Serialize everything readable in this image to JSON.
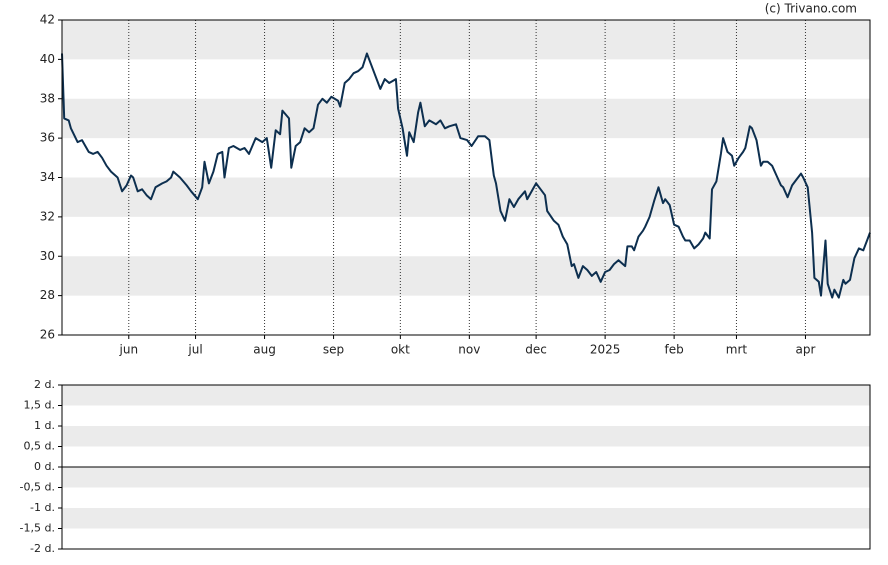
{
  "credit": "(c) Trivano.com",
  "chart_data": [
    {
      "type": "line",
      "xlim": [
        0,
        363
      ],
      "xticks": [
        {
          "value": 30,
          "label": "jun"
        },
        {
          "value": 60,
          "label": "jul"
        },
        {
          "value": 91,
          "label": "aug"
        },
        {
          "value": 122,
          "label": "sep"
        },
        {
          "value": 152,
          "label": "okt"
        },
        {
          "value": 183,
          "label": "nov"
        },
        {
          "value": 213,
          "label": "dec"
        },
        {
          "value": 244,
          "label": "2025"
        },
        {
          "value": 275,
          "label": "feb"
        },
        {
          "value": 303,
          "label": "mrt"
        },
        {
          "value": 334,
          "label": "apr"
        }
      ],
      "ylim": [
        26,
        42
      ],
      "yticks": [
        26,
        28,
        30,
        32,
        34,
        36,
        38,
        40,
        42
      ],
      "grid": true,
      "color": "#0d2f4f",
      "x": [
        0,
        1,
        3,
        4,
        7,
        9,
        12,
        14,
        16,
        18,
        20,
        22,
        25,
        27,
        29,
        31,
        32,
        34,
        36,
        38,
        40,
        42,
        45,
        47,
        49,
        50,
        53,
        56,
        58,
        61,
        63,
        64,
        66,
        68,
        70,
        72,
        73,
        75,
        77,
        80,
        82,
        84,
        87,
        90,
        92,
        94,
        96,
        98,
        99,
        102,
        103,
        105,
        107,
        109,
        111,
        113,
        115,
        117,
        119,
        121,
        124,
        125,
        127,
        129,
        131,
        133,
        135,
        137,
        139,
        142,
        143,
        145,
        147,
        150,
        151,
        153,
        155,
        156,
        158,
        160,
        161,
        163,
        165,
        168,
        170,
        172,
        174,
        177,
        179,
        182,
        184,
        187,
        190,
        192,
        194,
        195,
        197,
        199,
        201,
        203,
        205,
        208,
        209,
        212,
        213,
        215,
        217,
        218,
        221,
        223,
        225,
        227,
        229,
        230,
        232,
        234,
        236,
        238,
        240,
        242,
        244,
        246,
        248,
        250,
        252,
        253,
        254,
        256,
        257,
        259,
        261,
        262,
        264,
        266,
        268,
        270,
        271,
        273,
        275,
        277,
        279,
        280,
        282,
        284,
        286,
        288,
        289,
        291,
        292,
        294,
        296,
        297,
        299,
        301,
        302,
        304,
        306,
        307,
        309,
        310,
        312,
        314,
        315,
        317,
        319,
        321,
        323,
        324,
        326,
        328,
        330,
        332,
        333,
        335,
        337,
        338,
        340,
        341,
        343,
        344,
        346,
        347,
        349,
        351,
        352,
        354,
        356,
        358,
        360,
        362,
        363
      ],
      "values": [
        40.3,
        37.0,
        36.9,
        36.5,
        35.8,
        35.9,
        35.3,
        35.2,
        35.3,
        35.0,
        34.6,
        34.3,
        34.0,
        33.3,
        33.6,
        34.1,
        34.0,
        33.3,
        33.4,
        33.1,
        32.9,
        33.5,
        33.7,
        33.8,
        34.0,
        34.3,
        34.0,
        33.6,
        33.3,
        32.9,
        33.5,
        34.8,
        33.7,
        34.3,
        35.2,
        35.3,
        34.0,
        35.5,
        35.6,
        35.4,
        35.5,
        35.2,
        36.0,
        35.8,
        36.0,
        34.5,
        36.4,
        36.2,
        37.4,
        37.0,
        34.5,
        35.6,
        35.8,
        36.5,
        36.3,
        36.5,
        37.7,
        38.0,
        37.8,
        38.1,
        37.9,
        37.6,
        38.8,
        39.0,
        39.3,
        39.4,
        39.6,
        40.3,
        39.7,
        38.8,
        38.5,
        39.0,
        38.8,
        39.0,
        37.5,
        36.5,
        35.1,
        36.3,
        35.8,
        37.3,
        37.8,
        36.6,
        36.9,
        36.7,
        36.9,
        36.5,
        36.6,
        36.7,
        36.0,
        35.9,
        35.6,
        36.1,
        36.1,
        35.9,
        34.1,
        33.7,
        32.3,
        31.8,
        32.9,
        32.5,
        32.9,
        33.3,
        32.9,
        33.5,
        33.7,
        33.4,
        33.1,
        32.3,
        31.8,
        31.6,
        31.0,
        30.6,
        29.5,
        29.6,
        28.9,
        29.5,
        29.3,
        29.0,
        29.2,
        28.7,
        29.2,
        29.3,
        29.6,
        29.8,
        29.6,
        29.5,
        30.5,
        30.5,
        30.3,
        31.0,
        31.3,
        31.5,
        32.0,
        32.8,
        33.5,
        32.7,
        32.9,
        32.6,
        31.6,
        31.5,
        31.0,
        30.8,
        30.8,
        30.4,
        30.6,
        30.9,
        31.2,
        30.9,
        33.4,
        33.8,
        35.2,
        36.0,
        35.3,
        35.1,
        34.6,
        35.0,
        35.3,
        35.5,
        36.6,
        36.5,
        35.9,
        34.6,
        34.8,
        34.8,
        34.6,
        34.1,
        33.6,
        33.5,
        33.0,
        33.6,
        33.9,
        34.2,
        34.0,
        33.5,
        31.2,
        28.9,
        28.7,
        28.0,
        30.8,
        28.6,
        27.9,
        28.3,
        27.9,
        28.8,
        28.6,
        28.8,
        29.9,
        30.4,
        30.3,
        30.9,
        31.2
      ]
    },
    {
      "type": "bar",
      "ylim": [
        -2,
        2
      ],
      "yticks": [
        {
          "value": -2,
          "label": "-2 d."
        },
        {
          "value": -1.5,
          "label": "-1,5 d."
        },
        {
          "value": -1,
          "label": "-1 d."
        },
        {
          "value": -0.5,
          "label": "-0,5 d."
        },
        {
          "value": 0,
          "label": "0 d."
        },
        {
          "value": 0.5,
          "label": "0,5 d."
        },
        {
          "value": 1,
          "label": "1 d."
        },
        {
          "value": 1.5,
          "label": "1,5 d."
        },
        {
          "value": 2,
          "label": "2 d."
        }
      ],
      "grid": true
    }
  ]
}
